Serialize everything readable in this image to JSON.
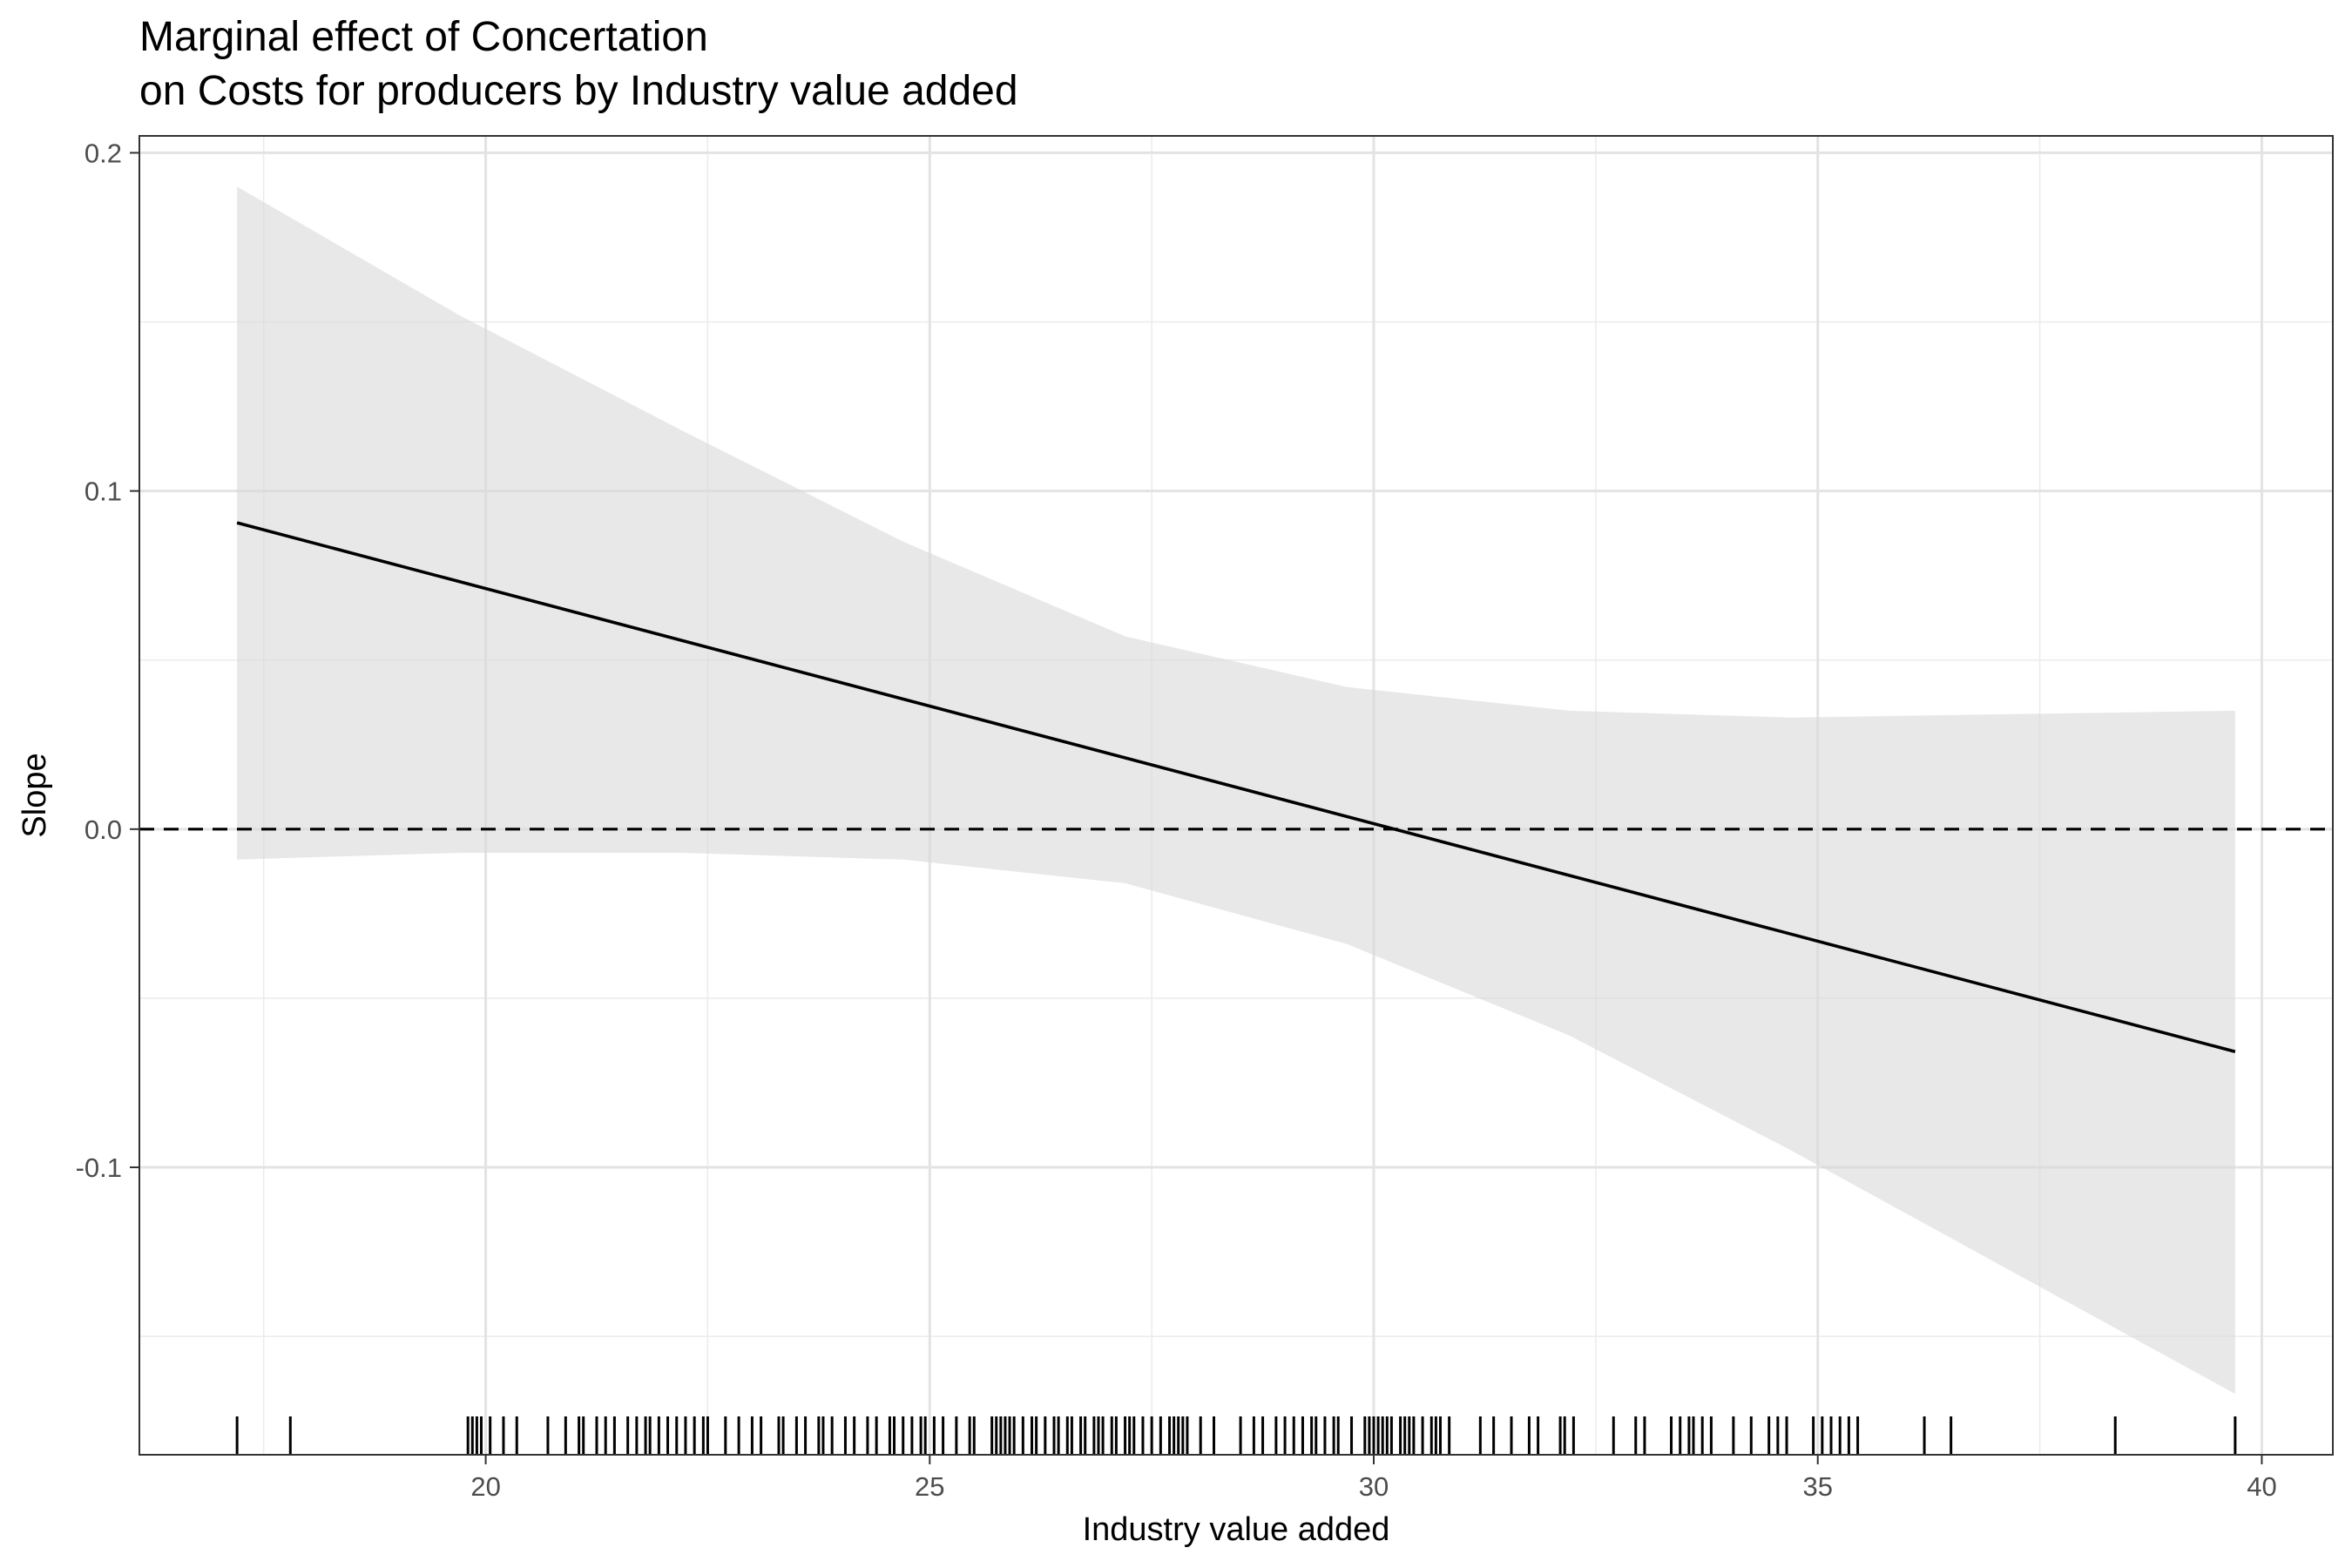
{
  "chart_data": {
    "type": "line",
    "title": [
      "Marginal effect of Concertation",
      "on Costs for producers by Industry value added"
    ],
    "xlabel": "Industry value added",
    "ylabel": "Slope",
    "xlim": [
      16.1,
      40.8
    ],
    "ylim": [
      -0.185,
      0.205
    ],
    "x_ticks": [
      20,
      25,
      30,
      35,
      40
    ],
    "x_tick_labels": [
      "20",
      "25",
      "30",
      "35",
      "40"
    ],
    "y_ticks": [
      -0.1,
      0.0,
      0.1,
      0.2
    ],
    "y_tick_labels": [
      "-0.1",
      "0.0",
      "0.1",
      "0.2"
    ],
    "grid": true,
    "reference_line": {
      "y": 0,
      "style": "dashed"
    },
    "estimate_line": {
      "x": [
        17.2,
        39.7
      ],
      "y": [
        0.0906,
        -0.0658
      ]
    },
    "confidence_band": {
      "x": [
        17.2,
        19.7,
        22.2,
        24.7,
        27.2,
        29.7,
        32.2,
        34.7,
        37.2,
        39.7
      ],
      "upper": [
        0.19,
        0.152,
        0.118,
        0.085,
        0.057,
        0.042,
        0.035,
        0.033,
        0.034,
        0.035
      ],
      "lower": [
        -0.009,
        -0.007,
        -0.007,
        -0.009,
        -0.016,
        -0.034,
        -0.061,
        -0.095,
        -0.131,
        -0.167
      ]
    },
    "rug_x": [
      17.2,
      17.8,
      19.8,
      19.85,
      19.9,
      19.95,
      20.05,
      20.2,
      20.35,
      20.7,
      20.9,
      21.05,
      21.1,
      21.25,
      21.35,
      21.45,
      21.6,
      21.7,
      21.8,
      21.85,
      21.95,
      22.05,
      22.15,
      22.25,
      22.35,
      22.45,
      22.5,
      22.7,
      22.85,
      23.0,
      23.1,
      23.3,
      23.35,
      23.5,
      23.6,
      23.75,
      23.8,
      23.9,
      24.05,
      24.15,
      24.3,
      24.4,
      24.55,
      24.6,
      24.7,
      24.8,
      24.9,
      24.95,
      25.05,
      25.15,
      25.3,
      25.45,
      25.5,
      25.7,
      25.75,
      25.8,
      25.85,
      25.9,
      25.95,
      26.05,
      26.15,
      26.2,
      26.3,
      26.4,
      26.45,
      26.55,
      26.6,
      26.7,
      26.75,
      26.85,
      26.9,
      26.95,
      27.05,
      27.1,
      27.2,
      27.25,
      27.3,
      27.4,
      27.5,
      27.6,
      27.7,
      27.75,
      27.8,
      27.85,
      27.9,
      28.05,
      28.2,
      28.5,
      28.65,
      28.75,
      28.9,
      29.0,
      29.1,
      29.2,
      29.3,
      29.35,
      29.45,
      29.55,
      29.6,
      29.75,
      29.9,
      29.95,
      30.0,
      30.05,
      30.1,
      30.15,
      30.2,
      30.3,
      30.35,
      30.4,
      30.45,
      30.55,
      30.65,
      30.7,
      30.75,
      30.85,
      31.2,
      31.35,
      31.55,
      31.75,
      31.85,
      32.1,
      32.15,
      32.25,
      32.7,
      32.95,
      33.05,
      33.35,
      33.45,
      33.55,
      33.6,
      33.7,
      33.8,
      34.05,
      34.25,
      34.45,
      34.55,
      34.65,
      34.95,
      35.05,
      35.15,
      35.25,
      35.35,
      35.45,
      36.2,
      36.5,
      38.35,
      39.7
    ]
  }
}
